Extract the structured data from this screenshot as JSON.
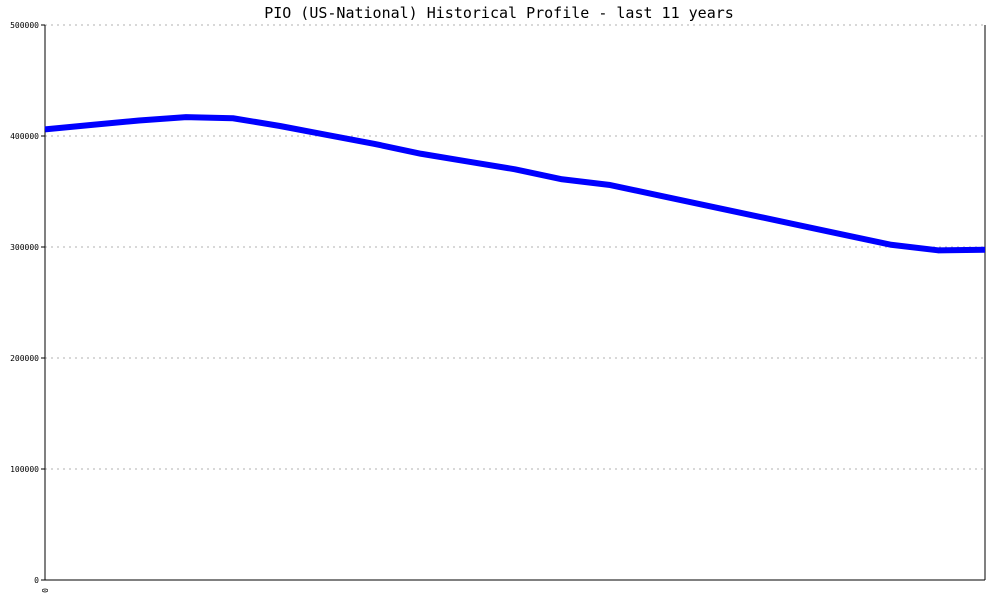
{
  "chart_data": {
    "type": "line",
    "title": "PIO (US-National) Historical Profile - last 11 years",
    "xlabel": "",
    "ylabel": "",
    "ylim": [
      0,
      500000
    ],
    "y_ticks": [
      "0",
      "100000",
      "200000",
      "300000",
      "400000",
      "500000"
    ],
    "x_ticks": [
      "0"
    ],
    "grid": true,
    "legend": "none",
    "x": [
      0,
      1,
      2,
      3,
      4,
      5,
      6,
      7,
      8,
      9,
      10,
      11,
      12,
      13,
      14,
      15,
      16,
      17,
      18,
      19,
      20
    ],
    "series": [
      {
        "color": "#0000ff",
        "values": [
          406000,
          410000,
          414000,
          417000,
          416000,
          409000,
          401000,
          393000,
          384000,
          377000,
          370000,
          361000,
          356000,
          347000,
          338000,
          329000,
          320000,
          311000,
          302000,
          297000,
          297500
        ]
      }
    ]
  }
}
